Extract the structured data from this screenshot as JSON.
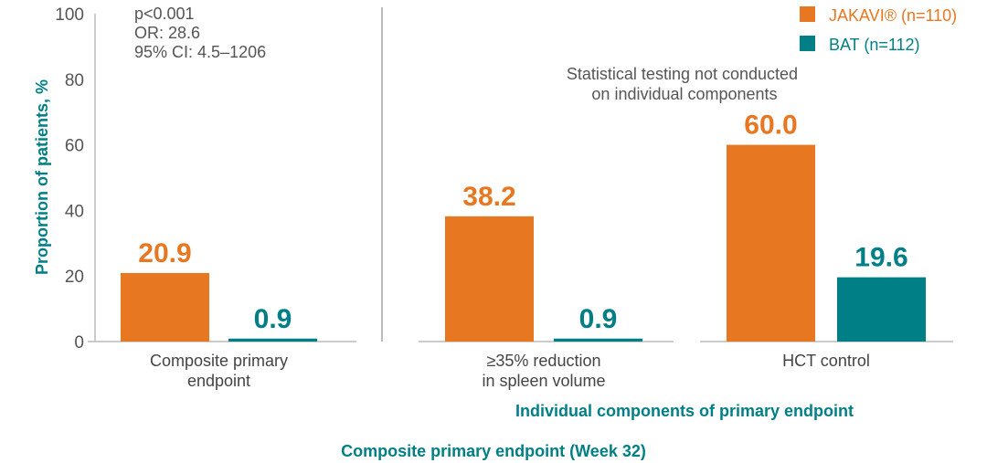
{
  "chart_data": {
    "type": "bar",
    "ylabel": "Proportion of patients, %",
    "ylim": [
      0,
      100
    ],
    "yticks": [
      0,
      20,
      40,
      60,
      80,
      100
    ],
    "categories": [
      "Composite primary endpoint",
      "≥35% reduction in spleen volume",
      "HCT control"
    ],
    "category_lines": [
      [
        "Composite primary",
        "endpoint"
      ],
      [
        "≥35% reduction",
        "in spleen volume"
      ],
      [
        "HCT control"
      ]
    ],
    "series": [
      {
        "name": "JAKAVI® (n=110)",
        "color": "#e87722",
        "values": [
          20.9,
          38.2,
          60.0
        ],
        "labels": [
          "20.9",
          "38.2",
          "60.0"
        ]
      },
      {
        "name": "BAT (n=112)",
        "color": "#007f86",
        "values": [
          0.9,
          0.9,
          19.6
        ],
        "labels": [
          "0.9",
          "0.9",
          "19.6"
        ]
      }
    ],
    "legend_position": "top-right",
    "annotations": {
      "stats": [
        "p<0.001",
        "OR: 28.6",
        "95% CI: 4.5–1206"
      ],
      "note": [
        "Statistical testing not conducted",
        "on individual components"
      ]
    },
    "group_labels": {
      "individual": "Individual components of primary endpoint",
      "composite": "Composite primary endpoint (Week 32)"
    },
    "grid": false
  }
}
